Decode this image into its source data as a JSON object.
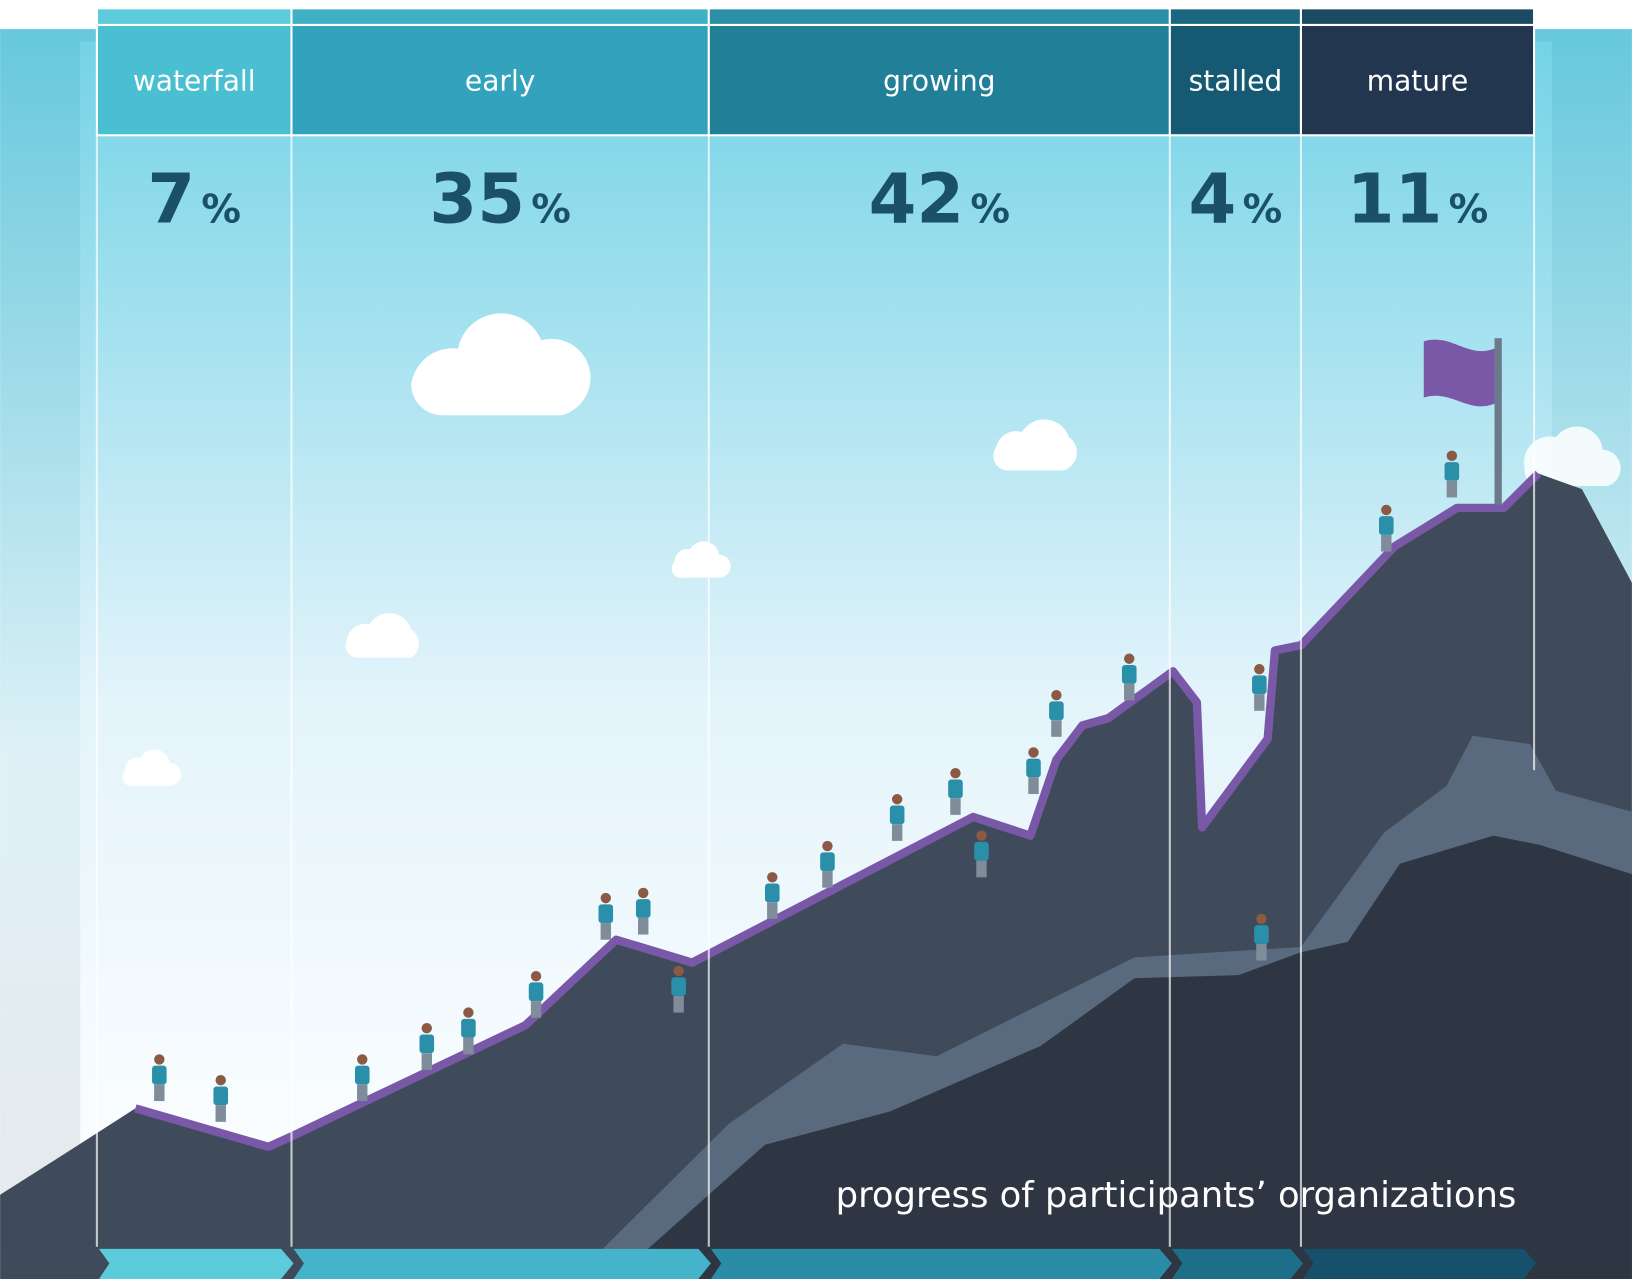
{
  "stages": [
    {
      "label": "waterfall",
      "value": 7,
      "unit": "%"
    },
    {
      "label": "early",
      "value": 35,
      "unit": "%"
    },
    {
      "label": "growing",
      "value": 42,
      "unit": "%"
    },
    {
      "label": "stalled",
      "value": 4,
      "unit": "%"
    },
    {
      "label": "mature",
      "value": 11,
      "unit": "%"
    }
  ],
  "caption": "progress of participants’ organizations"
}
